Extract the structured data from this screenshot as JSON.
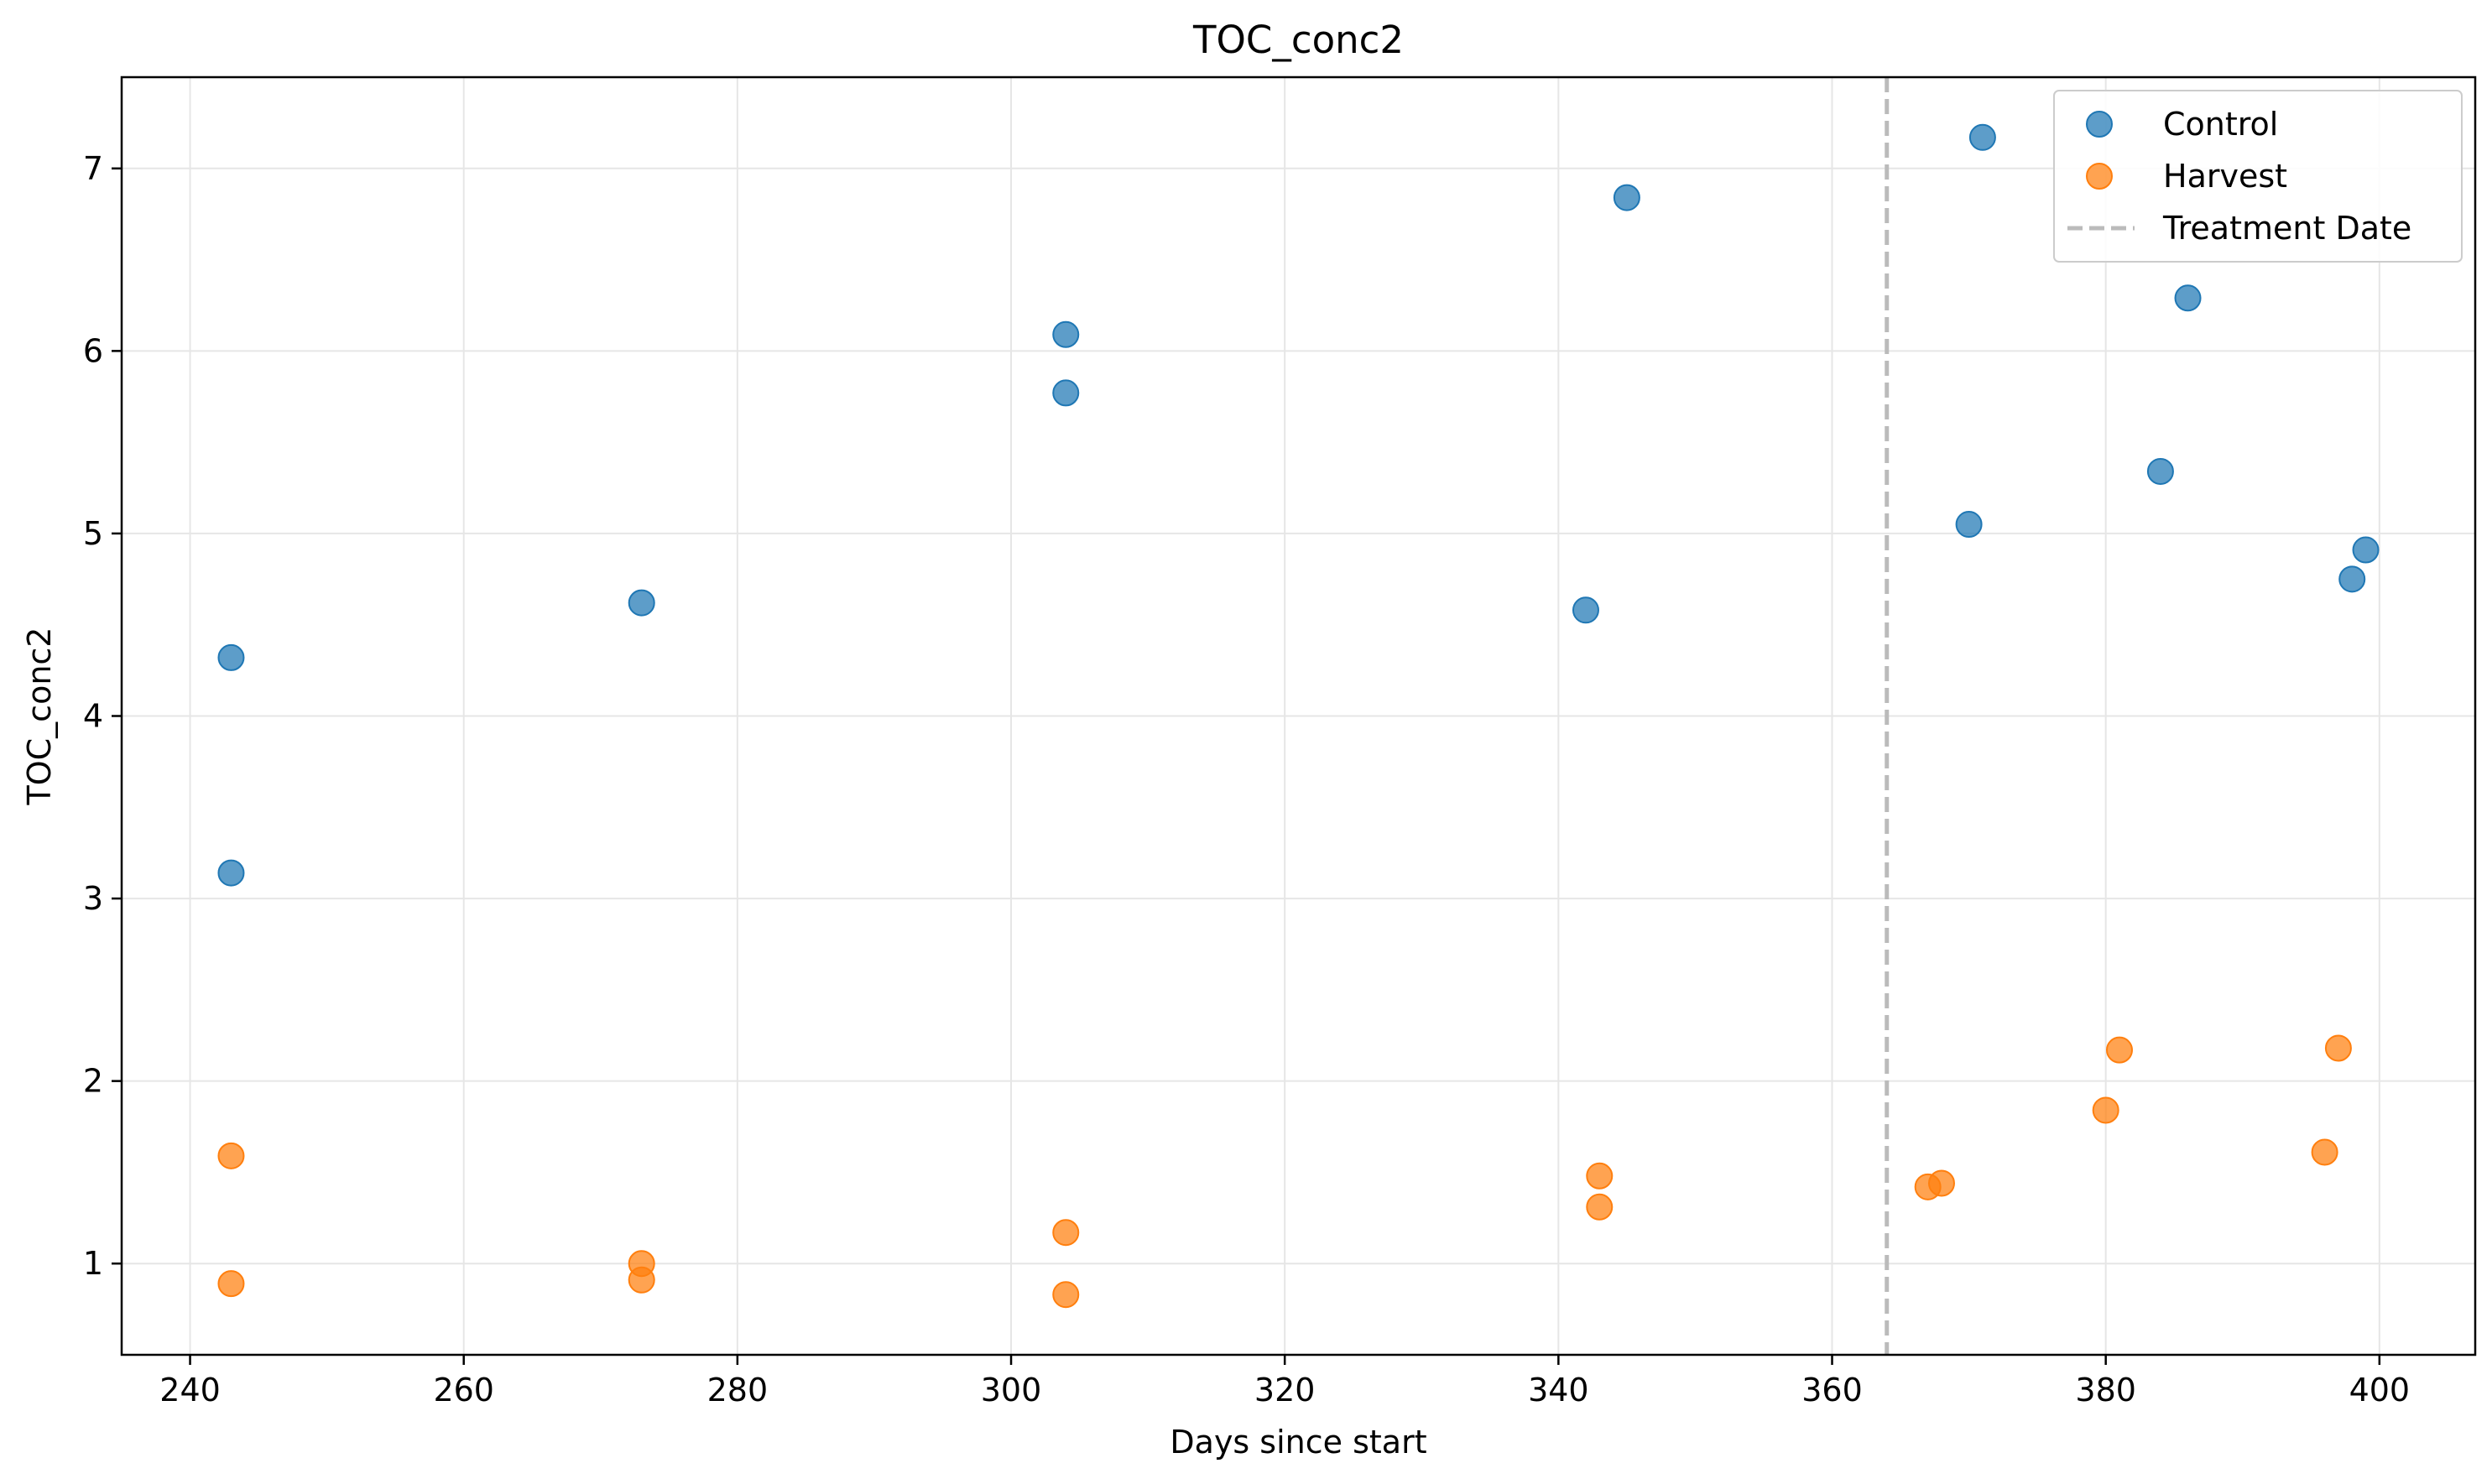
{
  "chart_data": {
    "type": "scatter",
    "title": "TOC_conc2",
    "xlabel": "Days since start",
    "ylabel": "TOC_conc2",
    "xlim": [
      235,
      407
    ],
    "ylim": [
      0.5,
      7.5
    ],
    "xticks": [
      240,
      260,
      280,
      300,
      320,
      340,
      360,
      380,
      400
    ],
    "yticks": [
      1,
      2,
      3,
      4,
      5,
      6,
      7
    ],
    "grid": true,
    "legend_position": "top-right",
    "series": [
      {
        "name": "Control",
        "color": "#1f77b4",
        "points": [
          {
            "x": 243,
            "y": 4.32
          },
          {
            "x": 243,
            "y": 3.14
          },
          {
            "x": 273,
            "y": 4.62
          },
          {
            "x": 304,
            "y": 6.09
          },
          {
            "x": 304,
            "y": 5.77
          },
          {
            "x": 342,
            "y": 4.58
          },
          {
            "x": 345,
            "y": 6.84
          },
          {
            "x": 370,
            "y": 5.05
          },
          {
            "x": 371,
            "y": 7.17
          },
          {
            "x": 384,
            "y": 5.34
          },
          {
            "x": 386,
            "y": 6.29
          },
          {
            "x": 398,
            "y": 4.75
          },
          {
            "x": 399,
            "y": 4.91
          }
        ]
      },
      {
        "name": "Harvest",
        "color": "#ff7f0e",
        "points": [
          {
            "x": 243,
            "y": 1.59
          },
          {
            "x": 243,
            "y": 0.89
          },
          {
            "x": 273,
            "y": 1.0
          },
          {
            "x": 273,
            "y": 0.91
          },
          {
            "x": 304,
            "y": 1.17
          },
          {
            "x": 304,
            "y": 0.83
          },
          {
            "x": 343,
            "y": 1.48
          },
          {
            "x": 343,
            "y": 1.31
          },
          {
            "x": 367,
            "y": 1.42
          },
          {
            "x": 368,
            "y": 1.44
          },
          {
            "x": 380,
            "y": 1.84
          },
          {
            "x": 381,
            "y": 2.17
          },
          {
            "x": 396,
            "y": 1.61
          },
          {
            "x": 397,
            "y": 2.18
          }
        ]
      }
    ],
    "annotations": [
      {
        "type": "vline",
        "x": 364,
        "name": "Treatment Date",
        "style": "dashed",
        "color": "#bbbbbb"
      }
    ]
  }
}
